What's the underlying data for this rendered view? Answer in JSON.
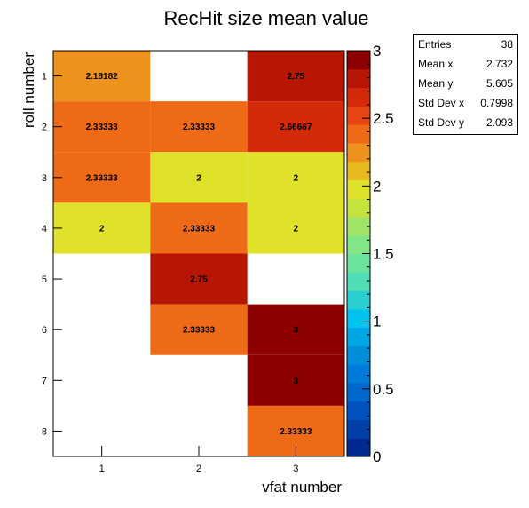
{
  "chart_data": {
    "type": "heatmap",
    "title": "RecHit size mean value",
    "xlabel": "vfat number",
    "ylabel": "roll number",
    "x_categories": [
      "1",
      "2",
      "3"
    ],
    "y_categories": [
      "1",
      "2",
      "3",
      "4",
      "5",
      "6",
      "7",
      "8"
    ],
    "cells": [
      {
        "x": 1,
        "y": 1,
        "value": 2.18182,
        "label": "2.18182"
      },
      {
        "x": 3,
        "y": 1,
        "value": 2.75,
        "label": "2.75"
      },
      {
        "x": 1,
        "y": 2,
        "value": 2.33333,
        "label": "2.33333"
      },
      {
        "x": 2,
        "y": 2,
        "value": 2.33333,
        "label": "2.33333"
      },
      {
        "x": 3,
        "y": 2,
        "value": 2.66667,
        "label": "2.66667"
      },
      {
        "x": 1,
        "y": 3,
        "value": 2.33333,
        "label": "2.33333"
      },
      {
        "x": 2,
        "y": 3,
        "value": 2,
        "label": "2"
      },
      {
        "x": 3,
        "y": 3,
        "value": 2,
        "label": "2"
      },
      {
        "x": 1,
        "y": 4,
        "value": 2,
        "label": "2"
      },
      {
        "x": 2,
        "y": 4,
        "value": 2.33333,
        "label": "2.33333"
      },
      {
        "x": 3,
        "y": 4,
        "value": 2,
        "label": "2"
      },
      {
        "x": 2,
        "y": 5,
        "value": 2.75,
        "label": "2.75"
      },
      {
        "x": 2,
        "y": 6,
        "value": 2.33333,
        "label": "2.33333"
      },
      {
        "x": 3,
        "y": 6,
        "value": 3,
        "label": "3"
      },
      {
        "x": 3,
        "y": 7,
        "value": 3,
        "label": "3"
      },
      {
        "x": 3,
        "y": 8,
        "value": 2.33333,
        "label": "2.33333"
      }
    ],
    "zlim": [
      0,
      3
    ],
    "colorbar_ticks": [
      "0",
      "0.5",
      "1",
      "1.5",
      "2",
      "2.5",
      "3"
    ],
    "palette": [
      "#002a90",
      "#003ea8",
      "#0052bf",
      "#0068cf",
      "#007bd9",
      "#008ed9",
      "#00a5e3",
      "#00c4ef",
      "#2ccfd0",
      "#50dcb4",
      "#6ae49c",
      "#82e586",
      "#a2e566",
      "#c3e43f",
      "#dfe229",
      "#e8b820",
      "#ed921c",
      "#ef6a16",
      "#ea4514",
      "#d42a0a",
      "#b81605",
      "#8e0000"
    ],
    "grid": false,
    "legend": "none"
  },
  "stats": {
    "rows": [
      {
        "label": "Entries",
        "value": "38"
      },
      {
        "label": "Mean x",
        "value": "2.732"
      },
      {
        "label": "Mean y",
        "value": "5.605"
      },
      {
        "label": "Std Dev x",
        "value": "0.7998"
      },
      {
        "label": "Std Dev y",
        "value": "2.093"
      }
    ]
  }
}
